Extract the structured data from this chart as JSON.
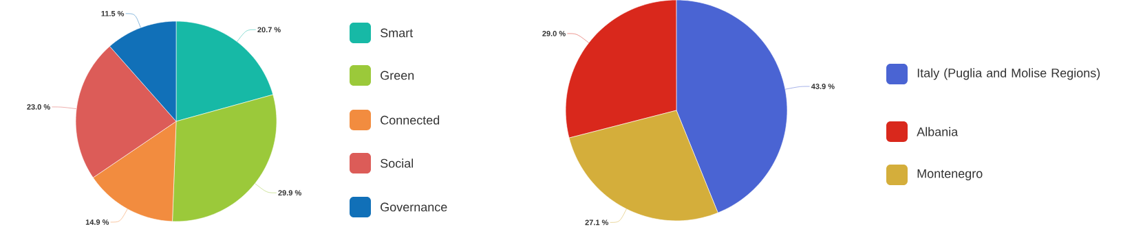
{
  "chart_data": [
    {
      "type": "pie",
      "categories": [
        "Smart",
        "Green",
        "Connected",
        "Social",
        "Governance"
      ],
      "values": [
        20.7,
        29.9,
        14.9,
        23.0,
        11.5
      ],
      "value_labels": [
        "20.7 %",
        "29.9 %",
        "14.9 %",
        "23.0 %",
        "11.5 %"
      ],
      "colors": [
        "#17b9a6",
        "#9bc93a",
        "#f28c3f",
        "#dc5c58",
        "#1170b8"
      ],
      "legend": "right"
    },
    {
      "type": "pie",
      "categories": [
        "Italy (Puglia and Molise Regions)",
        "Albania",
        "Montenegro"
      ],
      "values": [
        43.9,
        29.0,
        27.1
      ],
      "value_labels": [
        "43.9 %",
        "29.0 %",
        "27.1 %"
      ],
      "colors": [
        "#4a64d3",
        "#d9281c",
        "#d4ae3b"
      ],
      "legend": "right"
    }
  ]
}
